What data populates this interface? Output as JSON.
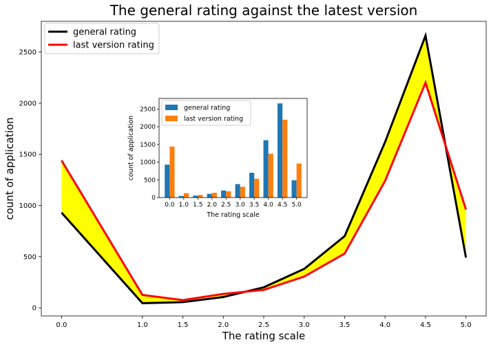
{
  "chart_data": [
    {
      "type": "line",
      "title": "The general rating against the latest version",
      "xlabel": "The rating scale",
      "ylabel": "count of application",
      "x": [
        0.0,
        1.0,
        1.5,
        2.0,
        2.5,
        3.0,
        3.5,
        4.0,
        4.5,
        5.0
      ],
      "xticks": [
        "0.0",
        "1.0",
        "1.5",
        "2.0",
        "2.5",
        "3.0",
        "3.5",
        "4.0",
        "4.5",
        "5.0"
      ],
      "yticks": [
        "0",
        "500",
        "1000",
        "1500",
        "2000",
        "2500"
      ],
      "xlim": [
        -0.25,
        5.25
      ],
      "ylim": [
        -80,
        2800
      ],
      "fill_between": {
        "color": "#ffff00"
      },
      "legend_position": "top-left",
      "series": [
        {
          "name": "general rating",
          "color": "#000000",
          "values": [
            930,
            45,
            55,
            105,
            200,
            380,
            700,
            1620,
            2660,
            490
          ]
        },
        {
          "name": "last version rating",
          "color": "#ff0000",
          "values": [
            1440,
            125,
            75,
            135,
            175,
            305,
            530,
            1240,
            2200,
            960
          ]
        }
      ]
    },
    {
      "type": "bar",
      "inset": true,
      "xlabel": "The rating scale",
      "ylabel": "count of application",
      "categories": [
        "0.0",
        "1.0",
        "1.5",
        "2.0",
        "2.5",
        "3.0",
        "3.5",
        "4.0",
        "4.5",
        "5.0"
      ],
      "yticks": [
        "0",
        "500",
        "1000",
        "1500",
        "2000",
        "2500"
      ],
      "ylim": [
        0,
        2800
      ],
      "legend_position": "top-left",
      "series": [
        {
          "name": "general rating",
          "color": "#1f77b4",
          "values": [
            930,
            45,
            55,
            105,
            200,
            380,
            700,
            1620,
            2660,
            490
          ]
        },
        {
          "name": "last version rating",
          "color": "#ff7f0e",
          "values": [
            1440,
            125,
            75,
            135,
            175,
            305,
            530,
            1240,
            2200,
            960
          ]
        }
      ]
    }
  ]
}
